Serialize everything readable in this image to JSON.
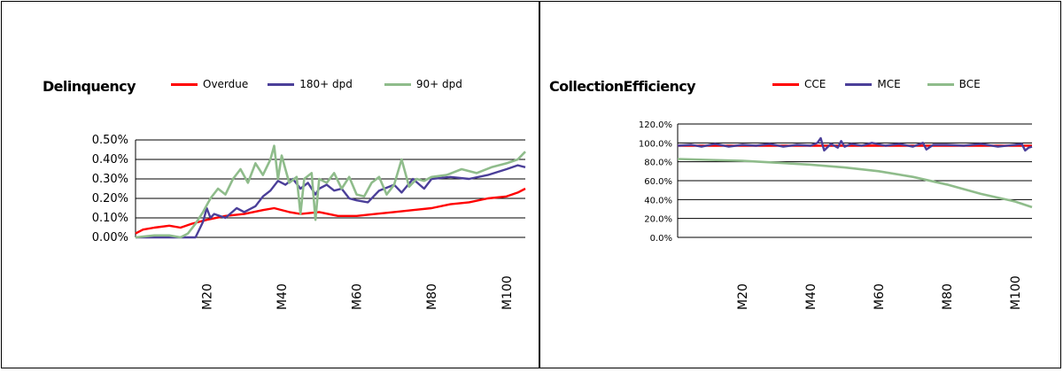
{
  "colors": {
    "overdue": "#ff0000",
    "dpd180": "#4b3f99",
    "dpd90": "#8fbc8b",
    "cce": "#ff0000",
    "mce": "#4b3f99",
    "bce": "#8fbc8b"
  },
  "chart_data": [
    {
      "type": "line",
      "title": "Delinquency",
      "legend": "top",
      "grid": true,
      "x_tick_labels": [
        "M20",
        "M40",
        "M60",
        "M80",
        "M100"
      ],
      "x_tick_positions": [
        20,
        40,
        60,
        80,
        100
      ],
      "xlim": [
        1,
        105
      ],
      "y_tick_labels": [
        "0.50%",
        "0.40%",
        "0.30%",
        "0.20%",
        "0.10%",
        "0.00%"
      ],
      "ylim": [
        0,
        0.5
      ],
      "series": [
        {
          "name": "Overdue",
          "color": "#ff0000",
          "x": [
            1,
            3,
            6,
            10,
            13,
            16,
            20,
            25,
            30,
            35,
            38,
            42,
            45,
            50,
            55,
            60,
            65,
            70,
            75,
            80,
            85,
            90,
            95,
            100,
            103,
            105
          ],
          "values": [
            0.02,
            0.04,
            0.05,
            0.06,
            0.05,
            0.07,
            0.09,
            0.11,
            0.12,
            0.14,
            0.15,
            0.13,
            0.12,
            0.13,
            0.11,
            0.11,
            0.12,
            0.13,
            0.14,
            0.15,
            0.17,
            0.18,
            0.2,
            0.21,
            0.23,
            0.25
          ]
        },
        {
          "name": "180+ dpd",
          "color": "#4b3f99",
          "x": [
            1,
            10,
            17,
            19,
            20,
            21,
            22,
            25,
            28,
            30,
            33,
            35,
            37,
            39,
            41,
            43,
            45,
            47,
            49,
            50,
            52,
            54,
            56,
            58,
            60,
            63,
            66,
            70,
            72,
            75,
            78,
            80,
            85,
            90,
            95,
            100,
            103,
            105
          ],
          "values": [
            0.0,
            0.0,
            0.0,
            0.08,
            0.15,
            0.1,
            0.12,
            0.1,
            0.15,
            0.13,
            0.16,
            0.21,
            0.24,
            0.29,
            0.27,
            0.3,
            0.25,
            0.28,
            0.22,
            0.25,
            0.27,
            0.24,
            0.25,
            0.2,
            0.19,
            0.18,
            0.24,
            0.27,
            0.23,
            0.3,
            0.25,
            0.3,
            0.31,
            0.3,
            0.32,
            0.35,
            0.37,
            0.36
          ]
        },
        {
          "name": "90+ dpd",
          "color": "#8fbc8b",
          "x": [
            1,
            6,
            10,
            13,
            15,
            17,
            19,
            21,
            23,
            25,
            27,
            29,
            31,
            33,
            35,
            37,
            38,
            39,
            40,
            41,
            42,
            44,
            45,
            46,
            48,
            49,
            50,
            52,
            54,
            56,
            58,
            60,
            62,
            64,
            66,
            68,
            70,
            72,
            74,
            76,
            78,
            80,
            84,
            88,
            92,
            96,
            100,
            103,
            105
          ],
          "values": [
            0.0,
            0.01,
            0.01,
            0.0,
            0.02,
            0.07,
            0.13,
            0.2,
            0.25,
            0.22,
            0.3,
            0.35,
            0.28,
            0.38,
            0.32,
            0.4,
            0.47,
            0.3,
            0.42,
            0.35,
            0.28,
            0.31,
            0.12,
            0.3,
            0.33,
            0.09,
            0.3,
            0.28,
            0.33,
            0.25,
            0.31,
            0.22,
            0.21,
            0.28,
            0.31,
            0.22,
            0.27,
            0.4,
            0.26,
            0.3,
            0.29,
            0.31,
            0.32,
            0.35,
            0.33,
            0.36,
            0.38,
            0.4,
            0.44
          ]
        }
      ]
    },
    {
      "type": "line",
      "title": "CollectionEfficiency",
      "legend": "top",
      "grid": true,
      "x_tick_labels": [
        "M20",
        "M40",
        "M60",
        "M80",
        "M100"
      ],
      "x_tick_positions": [
        20,
        40,
        60,
        80,
        100
      ],
      "xlim": [
        1,
        105
      ],
      "y_tick_labels": [
        "120.0%",
        "100.0%",
        "80.0%",
        "60.0%",
        "40.0%",
        "20.0%",
        "0.0%"
      ],
      "ylim": [
        0,
        120
      ],
      "series": [
        {
          "name": "CCE",
          "color": "#ff0000",
          "x": [
            1,
            10,
            20,
            30,
            40,
            50,
            60,
            70,
            80,
            90,
            100,
            105
          ],
          "values": [
            97,
            97,
            97,
            97,
            97,
            97,
            97,
            97,
            97,
            97,
            97,
            97
          ]
        },
        {
          "name": "MCE",
          "color": "#4b3f99",
          "x": [
            1,
            5,
            8,
            12,
            16,
            20,
            24,
            28,
            32,
            36,
            40,
            42,
            43,
            44,
            46,
            48,
            49,
            50,
            52,
            55,
            58,
            62,
            66,
            70,
            73,
            74,
            76,
            80,
            85,
            90,
            95,
            100,
            102,
            103,
            104,
            105
          ],
          "values": [
            97,
            98,
            96,
            99,
            96,
            98,
            97,
            99,
            96,
            98,
            97,
            100,
            105,
            92,
            99,
            95,
            102,
            96,
            99,
            97,
            100,
            97,
            99,
            96,
            100,
            93,
            98,
            98,
            97,
            99,
            96,
            98,
            99,
            92,
            95,
            96
          ]
        },
        {
          "name": "BCE",
          "color": "#8fbc8b",
          "x": [
            1,
            10,
            20,
            30,
            40,
            50,
            60,
            70,
            80,
            90,
            100,
            105
          ],
          "values": [
            83,
            82,
            81,
            79,
            77,
            74,
            70,
            64,
            56,
            46,
            38,
            32
          ]
        }
      ]
    }
  ]
}
